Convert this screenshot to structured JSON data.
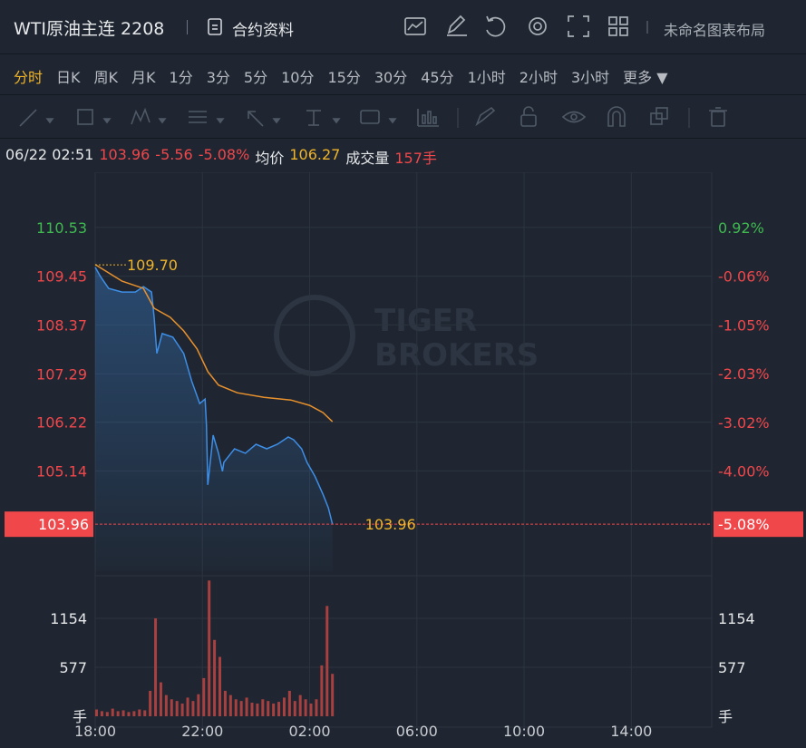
{
  "header": {
    "title": "WTI原油主连 2208",
    "contract_info": "合约资料",
    "layout": "未命名图表布局"
  },
  "periods": [
    "分时",
    "日K",
    "周K",
    "月K",
    "1分",
    "3分",
    "5分",
    "10分",
    "15分",
    "30分",
    "45分",
    "1小时",
    "2小时",
    "3小时",
    "更多 ▼"
  ],
  "active_period": "分时",
  "quote": {
    "time": "06/22 02:51",
    "price": 103.96,
    "change": -5.56,
    "change_pct": "-5.08%",
    "avg_label": "均价",
    "avg": 106.27,
    "volume_label": "成交量",
    "volume": "157手"
  },
  "chart_data": {
    "type": "line",
    "watermark": [
      "TIGER",
      "BROKERS"
    ],
    "xlim": [
      0,
      23
    ],
    "xticks": [
      {
        "value": 0,
        "label": "18:00"
      },
      {
        "value": 4,
        "label": "22:00"
      },
      {
        "value": 8,
        "label": "02:00"
      },
      {
        "value": 12,
        "label": "06:00"
      },
      {
        "value": 16,
        "label": "10:00"
      },
      {
        "value": 20,
        "label": "14:00"
      }
    ],
    "ylim": [
      102.92,
      111.65
    ],
    "yticks": [
      110.53,
      109.45,
      108.37,
      107.29,
      106.22,
      105.14
    ],
    "y2lim": [
      -6.03,
      1.95
    ],
    "y2ticks": [
      {
        "value": 0.92,
        "label": "0.92%"
      },
      {
        "value": -0.06,
        "label": "-0.06%"
      },
      {
        "value": -1.05,
        "label": "-1.05%"
      },
      {
        "value": -2.03,
        "label": "-2.03%"
      },
      {
        "value": -3.02,
        "label": "-3.02%"
      },
      {
        "value": -4.0,
        "label": "-4.00%"
      }
    ],
    "up_color": "#3fb950",
    "down_color": "#f0474b",
    "grid": true,
    "series": [
      {
        "color": "#3d8ee6",
        "x": [
          0,
          0.2,
          0.5,
          1,
          1.5,
          1.8,
          2.1,
          2.2,
          2.3,
          2.5,
          2.9,
          3.3,
          3.6,
          3.9,
          4.1,
          4.15,
          4.2,
          4.4,
          4.6,
          4.75,
          4.8,
          5.2,
          5.6,
          6.0,
          6.4,
          6.8,
          7.2,
          7.4,
          7.7,
          7.9,
          8.2,
          8.5,
          8.7,
          8.85
        ],
        "values": [
          109.65,
          109.44,
          109.18,
          109.1,
          109.1,
          109.22,
          109.1,
          108.54,
          107.74,
          108.18,
          108.1,
          107.74,
          107.13,
          106.63,
          106.73,
          106.17,
          104.83,
          105.93,
          105.53,
          105.13,
          105.33,
          105.63,
          105.53,
          105.73,
          105.63,
          105.73,
          105.89,
          105.83,
          105.63,
          105.33,
          105.02,
          104.62,
          104.32,
          103.96
        ]
      },
      {
        "color": "#e8912d",
        "x": [
          0,
          1,
          1.8,
          2.2,
          2.8,
          3.3,
          3.8,
          4.2,
          4.6,
          5.3,
          6.3,
          7.3,
          8,
          8.5,
          8.85
        ],
        "values": [
          109.71,
          109.34,
          109.18,
          108.74,
          108.54,
          108.24,
          107.84,
          107.34,
          107.04,
          106.87,
          106.77,
          106.71,
          106.59,
          106.43,
          106.23
        ]
      }
    ],
    "high_marker": {
      "x": 0,
      "value": 109.7,
      "label": "109.70",
      "color": "#f0b429"
    },
    "last_price": 103.96,
    "last_pct": {
      "value": -5.08,
      "label": "-5.08%"
    },
    "volume": {
      "color": "#a8403f",
      "unit": "手",
      "ylim": [
        0,
        1603
      ],
      "yticks": [
        1154,
        577
      ],
      "x": [
        0,
        0.2,
        0.4,
        0.6,
        0.8,
        1,
        1.2,
        1.4,
        1.6,
        1.8,
        2,
        2.2,
        2.4,
        2.6,
        2.8,
        3,
        3.2,
        3.4,
        3.6,
        3.8,
        4,
        4.2,
        4.4,
        4.6,
        4.8,
        5,
        5.2,
        5.4,
        5.6,
        5.8,
        6,
        6.2,
        6.4,
        6.6,
        6.8,
        7,
        7.2,
        7.4,
        7.6,
        7.8,
        8,
        8.2,
        8.4,
        8.6,
        8.8
      ],
      "values": [
        80,
        60,
        50,
        90,
        60,
        70,
        50,
        60,
        80,
        70,
        300,
        1154,
        400,
        250,
        200,
        180,
        150,
        220,
        180,
        260,
        450,
        1600,
        900,
        700,
        300,
        250,
        200,
        180,
        220,
        160,
        150,
        200,
        180,
        150,
        170,
        220,
        300,
        180,
        250,
        200,
        150,
        200,
        600,
        1300,
        500
      ]
    }
  }
}
